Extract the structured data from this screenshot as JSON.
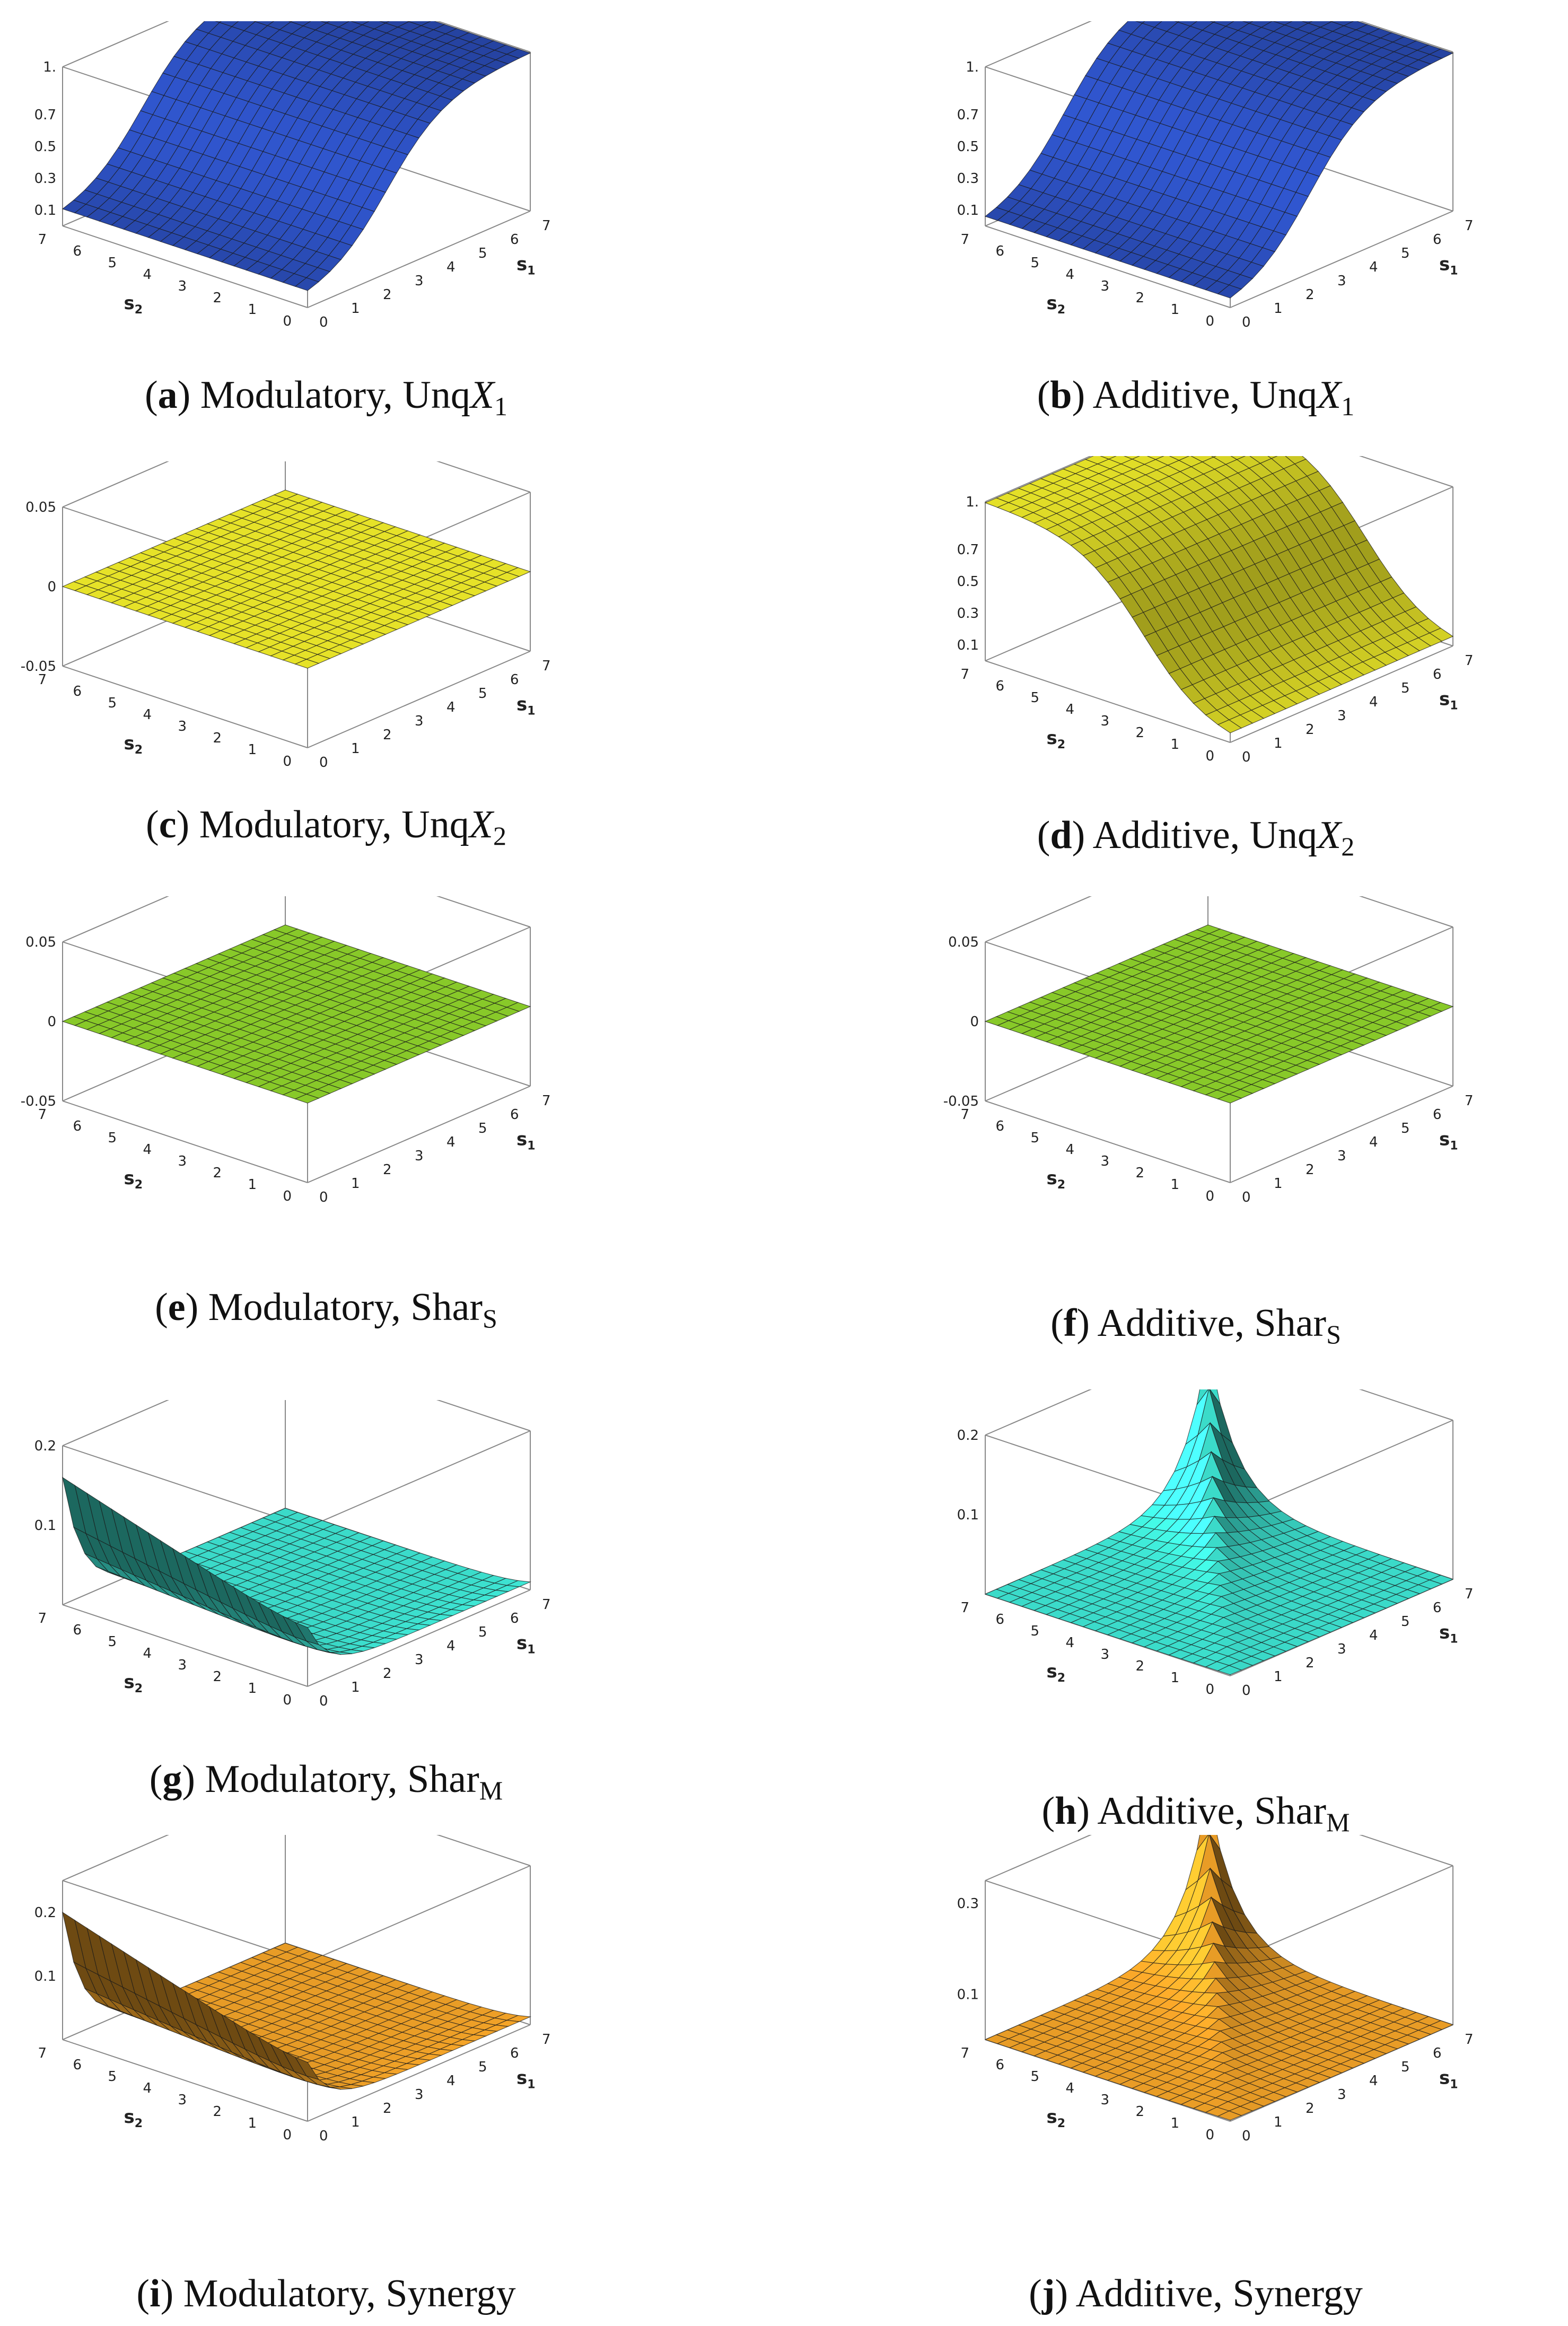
{
  "chart_data": [
    {
      "id": "a",
      "type": "surface",
      "caption_letter": "a",
      "caption_text": "Modulatory, Unq",
      "caption_var": "X",
      "caption_sub": "1",
      "color": "#2746a8",
      "xlabel": "s",
      "xlabel_sub": "1",
      "ylabel": "s",
      "ylabel_sub": "2",
      "xticks": [
        0,
        1,
        2,
        3,
        4,
        5,
        6,
        7
      ],
      "yticks": [
        0,
        1,
        2,
        3,
        4,
        5,
        6,
        7
      ],
      "zticks": [
        "0.1",
        "0.3",
        "0.5",
        "0.7",
        "1."
      ],
      "zlim": [
        0,
        1
      ],
      "shape": "ramp_s1_sigmoid_wall"
    },
    {
      "id": "b",
      "type": "surface",
      "caption_letter": "b",
      "caption_text": "Additive, Unq",
      "caption_var": "X",
      "caption_sub": "1",
      "color": "#2746a8",
      "xlabel": "s",
      "xlabel_sub": "1",
      "ylabel": "s",
      "ylabel_sub": "2",
      "xticks": [
        0,
        1,
        2,
        3,
        4,
        5,
        6,
        7
      ],
      "yticks": [
        0,
        1,
        2,
        3,
        4,
        5,
        6,
        7
      ],
      "zticks": [
        "0.1",
        "0.3",
        "0.5",
        "0.7",
        "1."
      ],
      "zlim": [
        0,
        1
      ],
      "shape": "s1_sigmoid"
    },
    {
      "id": "c",
      "type": "surface",
      "caption_letter": "c",
      "caption_text": "Modulatory, Unq",
      "caption_var": "X",
      "caption_sub": "2",
      "color": "#f2ee2a",
      "xlabel": "s",
      "xlabel_sub": "1",
      "ylabel": "s",
      "ylabel_sub": "2",
      "xticks": [
        0,
        1,
        2,
        3,
        4,
        5,
        6,
        7
      ],
      "yticks": [
        0,
        1,
        2,
        3,
        4,
        5,
        6,
        7
      ],
      "zticks": [
        "-0.05",
        "0",
        "0.05"
      ],
      "zlim": [
        -0.05,
        0.05
      ],
      "shape": "flat"
    },
    {
      "id": "d",
      "type": "surface",
      "caption_letter": "d",
      "caption_text": "Additive, Unq",
      "caption_var": "X",
      "caption_sub": "2",
      "color": "#f2ee2a",
      "xlabel": "s",
      "xlabel_sub": "1",
      "ylabel": "s",
      "ylabel_sub": "2",
      "xticks": [
        0,
        1,
        2,
        3,
        4,
        5,
        6,
        7
      ],
      "yticks": [
        0,
        1,
        2,
        3,
        4,
        5,
        6,
        7
      ],
      "zticks": [
        "0.1",
        "0.3",
        "0.5",
        "0.7",
        "1."
      ],
      "zlim": [
        0,
        1
      ],
      "shape": "s2_sigmoid"
    },
    {
      "id": "e",
      "type": "surface",
      "caption_letter": "e",
      "caption_text": "Modulatory, Shar",
      "caption_var": "",
      "caption_sub": "S",
      "color": "#8fd42b",
      "xlabel": "s",
      "xlabel_sub": "1",
      "ylabel": "s",
      "ylabel_sub": "2",
      "xticks": [
        0,
        1,
        2,
        3,
        4,
        5,
        6,
        7
      ],
      "yticks": [
        0,
        1,
        2,
        3,
        4,
        5,
        6,
        7
      ],
      "zticks": [
        "-0.05",
        "0",
        "0.05"
      ],
      "zlim": [
        -0.05,
        0.05
      ],
      "shape": "flat"
    },
    {
      "id": "f",
      "type": "surface",
      "caption_letter": "f",
      "caption_text": "Additive, Shar",
      "caption_var": "",
      "caption_sub": "S",
      "color": "#8fd42b",
      "xlabel": "s",
      "xlabel_sub": "1",
      "ylabel": "s",
      "ylabel_sub": "2",
      "xticks": [
        0,
        1,
        2,
        3,
        4,
        5,
        6,
        7
      ],
      "yticks": [
        0,
        1,
        2,
        3,
        4,
        5,
        6,
        7
      ],
      "zticks": [
        "-0.05",
        "0",
        "0.05"
      ],
      "zlim": [
        -0.05,
        0.05
      ],
      "shape": "flat"
    },
    {
      "id": "g",
      "type": "surface",
      "caption_letter": "g",
      "caption_text": "Modulatory, Shar",
      "caption_var": "",
      "caption_sub": "M",
      "color": "#3ee6d4",
      "xlabel": "s",
      "xlabel_sub": "1",
      "ylabel": "s",
      "ylabel_sub": "2",
      "xticks": [
        0,
        1,
        2,
        3,
        4,
        5,
        6,
        7
      ],
      "yticks": [
        0,
        1,
        2,
        3,
        4,
        5,
        6,
        7
      ],
      "zticks": [
        "0.1",
        "0.2"
      ],
      "zlim": [
        0,
        0.2
      ],
      "shape": "edge_s1_low"
    },
    {
      "id": "h",
      "type": "surface",
      "caption_letter": "h",
      "caption_text": "Additive, Shar",
      "caption_var": "",
      "caption_sub": "M",
      "color": "#3ee6d4",
      "xlabel": "s",
      "xlabel_sub": "1",
      "ylabel": "s",
      "ylabel_sub": "2",
      "xticks": [
        0,
        1,
        2,
        3,
        4,
        5,
        6,
        7
      ],
      "yticks": [
        0,
        1,
        2,
        3,
        4,
        5,
        6,
        7
      ],
      "zticks": [
        "0.1",
        "0.2"
      ],
      "zlim": [
        0,
        0.2
      ],
      "shape": "diag_peak"
    },
    {
      "id": "i",
      "type": "surface",
      "caption_letter": "i",
      "caption_text": "Modulatory, Synergy",
      "caption_var": "",
      "caption_sub": "",
      "color": "#f4a428",
      "xlabel": "s",
      "xlabel_sub": "1",
      "ylabel": "s",
      "ylabel_sub": "2",
      "xticks": [
        0,
        1,
        2,
        3,
        4,
        5,
        6,
        7
      ],
      "yticks": [
        0,
        1,
        2,
        3,
        4,
        5,
        6,
        7
      ],
      "zticks": [
        "0.1",
        "0.2"
      ],
      "zlim": [
        0,
        0.25
      ],
      "shape": "edge_s1_low"
    },
    {
      "id": "j",
      "type": "surface",
      "caption_letter": "j",
      "caption_text": "Additive, Synergy",
      "caption_var": "",
      "caption_sub": "",
      "color": "#f4a428",
      "xlabel": "s",
      "xlabel_sub": "1",
      "ylabel": "s",
      "ylabel_sub": "2",
      "xticks": [
        0,
        1,
        2,
        3,
        4,
        5,
        6,
        7
      ],
      "yticks": [
        0,
        1,
        2,
        3,
        4,
        5,
        6,
        7
      ],
      "zticks": [
        "0.1",
        "0.3"
      ],
      "zlim": [
        0,
        0.35
      ],
      "shape": "diag_peak"
    }
  ]
}
